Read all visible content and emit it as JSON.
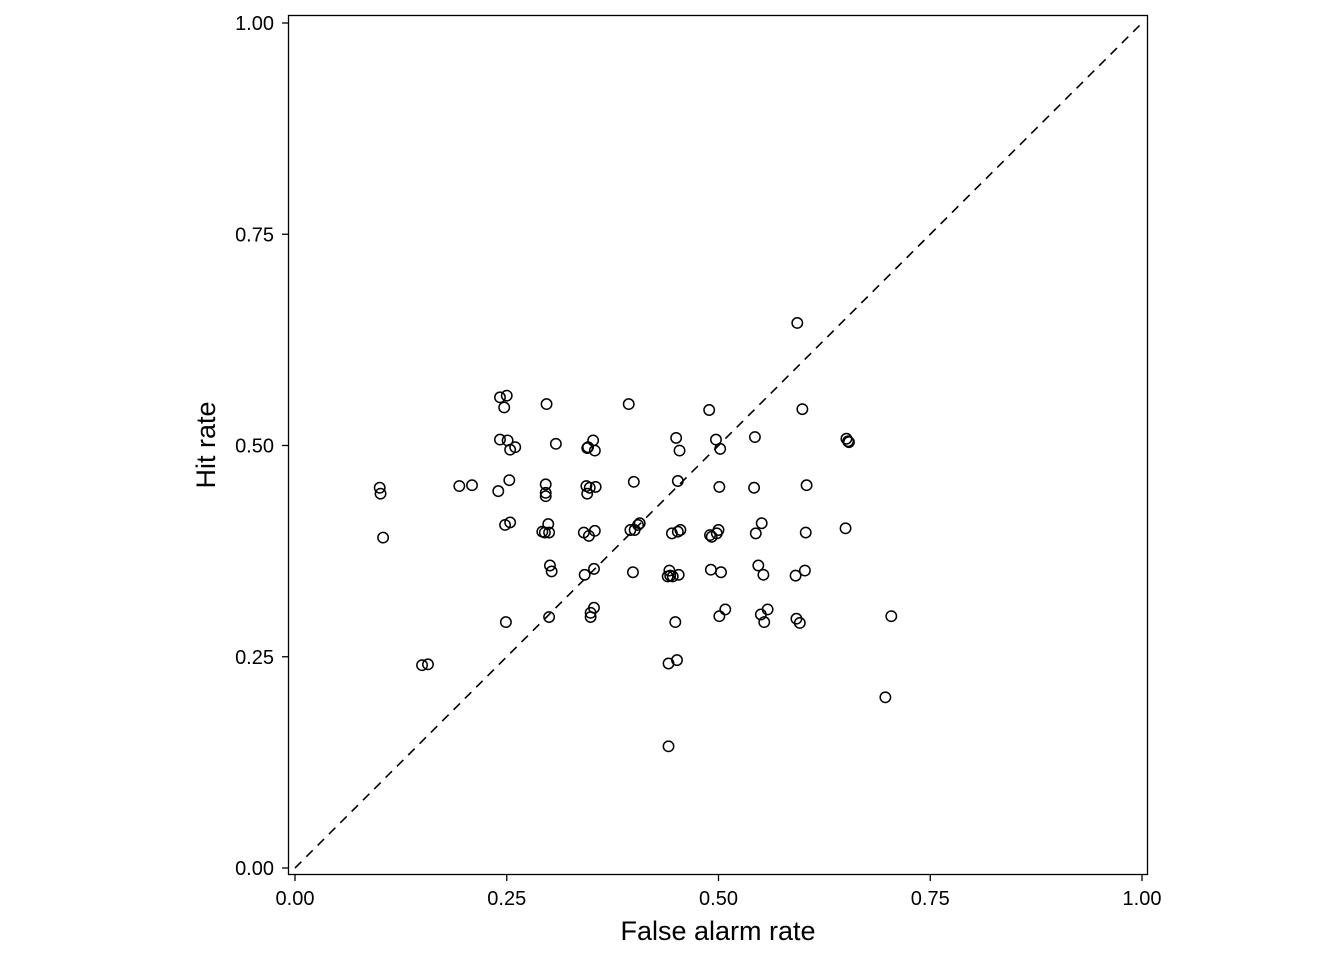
{
  "chart_data": {
    "type": "scatter",
    "xlabel": "False alarm rate",
    "ylabel": "Hit rate",
    "xlim": [
      0,
      1
    ],
    "ylim": [
      0,
      1
    ],
    "x_ticks": [
      "0.00",
      "0.25",
      "0.50",
      "0.75",
      "1.00"
    ],
    "y_ticks": [
      "0.00",
      "0.25",
      "0.50",
      "0.75",
      "1.00"
    ],
    "reference_line": "identity (y = x), dashed",
    "marker": "open circle",
    "grid": false,
    "points": [
      {
        "x": 0.1,
        "y": 0.45
      },
      {
        "x": 0.101,
        "y": 0.443
      },
      {
        "x": 0.104,
        "y": 0.391
      },
      {
        "x": 0.15,
        "y": 0.24
      },
      {
        "x": 0.157,
        "y": 0.241
      },
      {
        "x": 0.194,
        "y": 0.452
      },
      {
        "x": 0.209,
        "y": 0.453
      },
      {
        "x": 0.24,
        "y": 0.446
      },
      {
        "x": 0.242,
        "y": 0.507
      },
      {
        "x": 0.242,
        "y": 0.557
      },
      {
        "x": 0.247,
        "y": 0.545
      },
      {
        "x": 0.248,
        "y": 0.406
      },
      {
        "x": 0.249,
        "y": 0.291
      },
      {
        "x": 0.25,
        "y": 0.559
      },
      {
        "x": 0.251,
        "y": 0.506
      },
      {
        "x": 0.253,
        "y": 0.459
      },
      {
        "x": 0.254,
        "y": 0.495
      },
      {
        "x": 0.254,
        "y": 0.409
      },
      {
        "x": 0.26,
        "y": 0.498
      },
      {
        "x": 0.292,
        "y": 0.398
      },
      {
        "x": 0.295,
        "y": 0.397
      },
      {
        "x": 0.296,
        "y": 0.454
      },
      {
        "x": 0.296,
        "y": 0.444
      },
      {
        "x": 0.296,
        "y": 0.44
      },
      {
        "x": 0.297,
        "y": 0.549
      },
      {
        "x": 0.299,
        "y": 0.407
      },
      {
        "x": 0.3,
        "y": 0.297
      },
      {
        "x": 0.3,
        "y": 0.397
      },
      {
        "x": 0.301,
        "y": 0.358
      },
      {
        "x": 0.303,
        "y": 0.351
      },
      {
        "x": 0.308,
        "y": 0.502
      },
      {
        "x": 0.341,
        "y": 0.397
      },
      {
        "x": 0.342,
        "y": 0.347
      },
      {
        "x": 0.344,
        "y": 0.452
      },
      {
        "x": 0.345,
        "y": 0.497
      },
      {
        "x": 0.345,
        "y": 0.443
      },
      {
        "x": 0.346,
        "y": 0.498
      },
      {
        "x": 0.347,
        "y": 0.393
      },
      {
        "x": 0.348,
        "y": 0.45
      },
      {
        "x": 0.349,
        "y": 0.302
      },
      {
        "x": 0.349,
        "y": 0.297
      },
      {
        "x": 0.352,
        "y": 0.506
      },
      {
        "x": 0.353,
        "y": 0.354
      },
      {
        "x": 0.353,
        "y": 0.308
      },
      {
        "x": 0.354,
        "y": 0.494
      },
      {
        "x": 0.354,
        "y": 0.399
      },
      {
        "x": 0.355,
        "y": 0.451
      },
      {
        "x": 0.394,
        "y": 0.549
      },
      {
        "x": 0.396,
        "y": 0.4
      },
      {
        "x": 0.399,
        "y": 0.35
      },
      {
        "x": 0.4,
        "y": 0.457
      },
      {
        "x": 0.401,
        "y": 0.4
      },
      {
        "x": 0.405,
        "y": 0.406
      },
      {
        "x": 0.407,
        "y": 0.408
      },
      {
        "x": 0.44,
        "y": 0.345
      },
      {
        "x": 0.441,
        "y": 0.144
      },
      {
        "x": 0.441,
        "y": 0.242
      },
      {
        "x": 0.442,
        "y": 0.352
      },
      {
        "x": 0.443,
        "y": 0.346
      },
      {
        "x": 0.445,
        "y": 0.396
      },
      {
        "x": 0.446,
        "y": 0.345
      },
      {
        "x": 0.449,
        "y": 0.291
      },
      {
        "x": 0.45,
        "y": 0.509
      },
      {
        "x": 0.451,
        "y": 0.246
      },
      {
        "x": 0.452,
        "y": 0.458
      },
      {
        "x": 0.452,
        "y": 0.398
      },
      {
        "x": 0.453,
        "y": 0.347
      },
      {
        "x": 0.454,
        "y": 0.494
      },
      {
        "x": 0.455,
        "y": 0.4
      },
      {
        "x": 0.489,
        "y": 0.542
      },
      {
        "x": 0.49,
        "y": 0.394
      },
      {
        "x": 0.491,
        "y": 0.353
      },
      {
        "x": 0.492,
        "y": 0.392
      },
      {
        "x": 0.497,
        "y": 0.507
      },
      {
        "x": 0.498,
        "y": 0.396
      },
      {
        "x": 0.5,
        "y": 0.4
      },
      {
        "x": 0.501,
        "y": 0.451
      },
      {
        "x": 0.501,
        "y": 0.298
      },
      {
        "x": 0.502,
        "y": 0.496
      },
      {
        "x": 0.503,
        "y": 0.35
      },
      {
        "x": 0.508,
        "y": 0.306
      },
      {
        "x": 0.542,
        "y": 0.45
      },
      {
        "x": 0.543,
        "y": 0.51
      },
      {
        "x": 0.544,
        "y": 0.396
      },
      {
        "x": 0.547,
        "y": 0.358
      },
      {
        "x": 0.55,
        "y": 0.3
      },
      {
        "x": 0.551,
        "y": 0.408
      },
      {
        "x": 0.553,
        "y": 0.347
      },
      {
        "x": 0.554,
        "y": 0.291
      },
      {
        "x": 0.558,
        "y": 0.306
      },
      {
        "x": 0.591,
        "y": 0.346
      },
      {
        "x": 0.592,
        "y": 0.295
      },
      {
        "x": 0.593,
        "y": 0.645
      },
      {
        "x": 0.596,
        "y": 0.29
      },
      {
        "x": 0.599,
        "y": 0.543
      },
      {
        "x": 0.602,
        "y": 0.352
      },
      {
        "x": 0.603,
        "y": 0.397
      },
      {
        "x": 0.604,
        "y": 0.453
      },
      {
        "x": 0.65,
        "y": 0.402
      },
      {
        "x": 0.651,
        "y": 0.508
      },
      {
        "x": 0.653,
        "y": 0.505
      },
      {
        "x": 0.654,
        "y": 0.504
      },
      {
        "x": 0.697,
        "y": 0.202
      },
      {
        "x": 0.704,
        "y": 0.298
      }
    ]
  }
}
